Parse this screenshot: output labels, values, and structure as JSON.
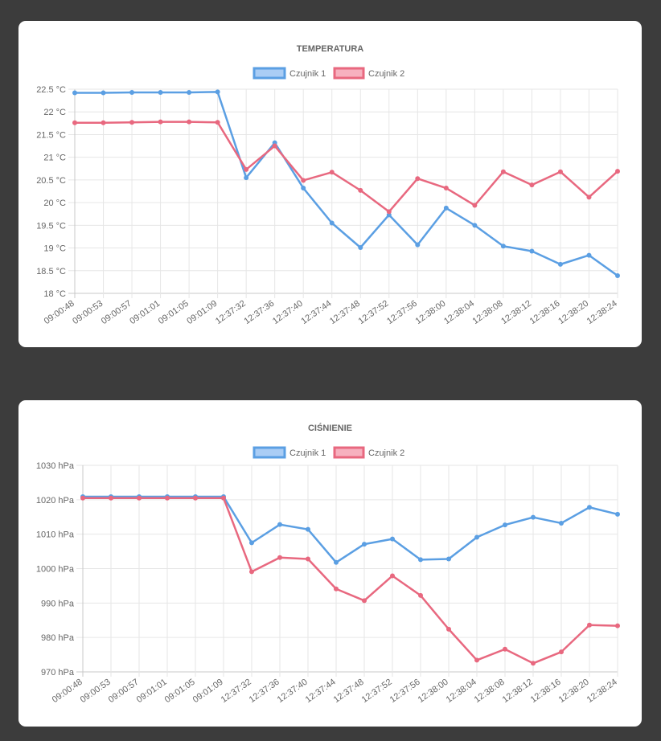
{
  "charts": [
    {
      "id": "temp",
      "title": "TEMPERATURA",
      "legend": [
        {
          "name": "Czujnik 1",
          "color": "#5b9fe3",
          "fill": "#aacdf5"
        },
        {
          "name": "Czujnik 2",
          "color": "#e8687f",
          "fill": "#f7b1bf"
        }
      ],
      "y_ticks": [
        "22.5 °C",
        "22 °C",
        "21.5 °C",
        "21 °C",
        "20.5 °C",
        "20 °C",
        "19.5 °C",
        "19 °C",
        "18.5 °C",
        "18 °C"
      ],
      "x_ticks": [
        "09:00:48",
        "09:00:53",
        "09:00:57",
        "09:01:01",
        "09:01:05",
        "09:01:09",
        "12:37:32",
        "12:37:36",
        "12:37:40",
        "12:37:44",
        "12:37:48",
        "12:37:52",
        "12:37:56",
        "12:38:00",
        "12:38:04",
        "12:38:08",
        "12:38:12",
        "12:38:16",
        "12:38:20",
        "12:38:24"
      ]
    },
    {
      "id": "press",
      "title": "CIŚNIENIE",
      "legend": [
        {
          "name": "Czujnik 1",
          "color": "#5b9fe3",
          "fill": "#aacdf5"
        },
        {
          "name": "Czujnik 2",
          "color": "#e8687f",
          "fill": "#f7b1bf"
        }
      ],
      "y_ticks": [
        "1030 hPa",
        "1020 hPa",
        "1010 hPa",
        "1000 hPa",
        "990 hPa",
        "980 hPa",
        "970 hPa"
      ],
      "x_ticks": [
        "09:00:48",
        "09:00:53",
        "09:00:57",
        "09:01:01",
        "09:01:05",
        "09:01:09",
        "12:37:32",
        "12:37:36",
        "12:37:40",
        "12:37:44",
        "12:37:48",
        "12:37:52",
        "12:37:56",
        "12:38:00",
        "12:38:04",
        "12:38:08",
        "12:38:12",
        "12:38:16",
        "12:38:20",
        "12:38:24"
      ]
    }
  ],
  "chart_data": [
    {
      "type": "line",
      "title": "TEMPERATURA",
      "x": [
        "09:00:48",
        "09:00:53",
        "09:00:57",
        "09:01:01",
        "09:01:05",
        "09:01:09",
        "12:37:32",
        "12:37:36",
        "12:37:40",
        "12:37:44",
        "12:37:48",
        "12:37:52",
        "12:37:56",
        "12:38:00",
        "12:38:04",
        "12:38:08",
        "12:38:12",
        "12:38:16",
        "12:38:20",
        "12:38:24"
      ],
      "ylim": [
        18,
        22.5
      ],
      "yunit": "°C",
      "grid": true,
      "legend_position": "top",
      "series": [
        {
          "name": "Czujnik 1",
          "color": "#5b9fe3",
          "values": [
            22.42,
            22.42,
            22.43,
            22.43,
            22.43,
            22.44,
            20.55,
            21.32,
            20.32,
            19.55,
            19.01,
            19.73,
            19.07,
            19.88,
            19.5,
            19.04,
            18.93,
            18.64,
            18.84,
            18.39
          ]
        },
        {
          "name": "Czujnik 2",
          "color": "#e8687f",
          "values": [
            21.76,
            21.76,
            21.77,
            21.78,
            21.78,
            21.77,
            20.73,
            21.25,
            20.49,
            20.67,
            20.27,
            19.8,
            20.53,
            20.32,
            19.94,
            20.68,
            20.39,
            20.68,
            20.12,
            20.69
          ]
        }
      ]
    },
    {
      "type": "line",
      "title": "CIŚNIENIE",
      "x": [
        "09:00:48",
        "09:00:53",
        "09:00:57",
        "09:01:01",
        "09:01:05",
        "09:01:09",
        "12:37:32",
        "12:37:36",
        "12:37:40",
        "12:37:44",
        "12:37:48",
        "12:37:52",
        "12:37:56",
        "12:38:00",
        "12:38:04",
        "12:38:08",
        "12:38:12",
        "12:38:16",
        "12:38:20",
        "12:38:24"
      ],
      "ylim": [
        970,
        1030
      ],
      "yunit": "hPa",
      "grid": true,
      "legend_position": "top",
      "series": [
        {
          "name": "Czujnik 1",
          "color": "#5b9fe3",
          "values": [
            1020.9,
            1020.9,
            1020.9,
            1020.9,
            1020.9,
            1020.9,
            1007.5,
            1012.8,
            1011.4,
            1001.8,
            1007.1,
            1008.6,
            1002.6,
            1002.8,
            1009.1,
            1012.7,
            1014.9,
            1013.2,
            1017.8,
            1015.8
          ]
        },
        {
          "name": "Czujnik 2",
          "color": "#e8687f",
          "values": [
            1020.5,
            1020.5,
            1020.5,
            1020.5,
            1020.5,
            1020.5,
            999.1,
            1003.2,
            1002.8,
            994.1,
            990.7,
            997.9,
            992.2,
            982.4,
            973.4,
            976.6,
            972.5,
            975.8,
            983.6,
            983.4
          ]
        }
      ]
    }
  ]
}
